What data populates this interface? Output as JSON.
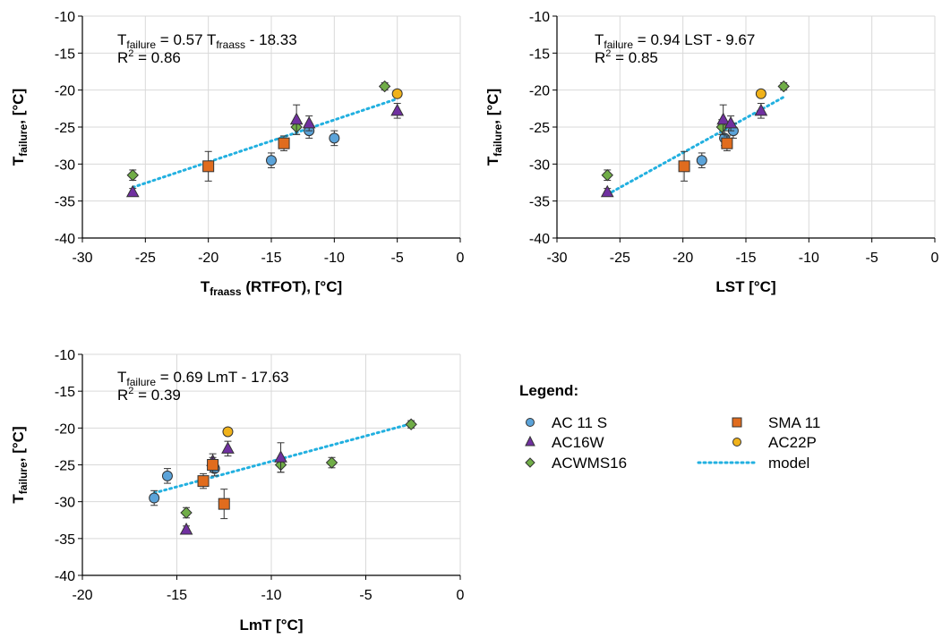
{
  "colors": {
    "AC 11 S": "#5ba3d9",
    "AC16W": "#7030a0",
    "ACWMS16": "#70ad47",
    "SMA 11": "#e06c1e",
    "AC22P": "#f0b21a",
    "model": "#22b0e0",
    "grid": "#d9d9d9"
  },
  "legend": {
    "title": "Legend:",
    "items": [
      {
        "label": "AC 11 S",
        "marker": "circle",
        "series": "AC 11 S"
      },
      {
        "label": "SMA 11",
        "marker": "square",
        "series": "SMA 11"
      },
      {
        "label": "AC16W",
        "marker": "triangle",
        "series": "AC16W"
      },
      {
        "label": "AC22P",
        "marker": "circle",
        "series": "AC22P"
      },
      {
        "label": "ACWMS16",
        "marker": "diamond",
        "series": "ACWMS16"
      },
      {
        "label": "model",
        "marker": "dotted-line",
        "series": "model"
      }
    ]
  },
  "chart_data": [
    {
      "type": "scatter",
      "xlabel_main": "T",
      "xlabel_sub": "fraass",
      "xlabel_rest": " (RTFOT), [°C]",
      "ylabel_main": "T",
      "ylabel_sub": "failure",
      "ylabel_rest": ", [°C]",
      "xlim": [
        -30,
        0
      ],
      "ylim": [
        -40,
        -10
      ],
      "xticks": [
        -30,
        -25,
        -20,
        -15,
        -10,
        -5,
        0
      ],
      "yticks": [
        -10,
        -15,
        -20,
        -25,
        -30,
        -35,
        -40
      ],
      "grid": true,
      "equation": {
        "lhs": "T",
        "lhs_sub": "failure",
        "mid": " = 0.57 T",
        "mid_sub": "fraass",
        "rhs": " - 18.33"
      },
      "r2": {
        "label": "R",
        "sup": "2",
        "value": " = 0.86"
      },
      "model_line": {
        "x": [
          -26,
          -5
        ],
        "y": [
          -33.15,
          -21.18
        ]
      },
      "series": [
        {
          "name": "AC 11 S",
          "marker": "circle",
          "points": [
            {
              "x": -15,
              "y": -29.5,
              "err": 1
            },
            {
              "x": -10,
              "y": -26.5,
              "err": 1
            },
            {
              "x": -12,
              "y": -25.5,
              "err": 1
            }
          ]
        },
        {
          "name": "AC16W",
          "marker": "triangle",
          "points": [
            {
              "x": -26,
              "y": -33.8,
              "err": 0.5
            },
            {
              "x": -13,
              "y": -24,
              "err": 2
            },
            {
              "x": -12,
              "y": -24.5,
              "err": 1
            },
            {
              "x": -5,
              "y": -22.8,
              "err": 1
            }
          ]
        },
        {
          "name": "ACWMS16",
          "marker": "diamond",
          "points": [
            {
              "x": -26,
              "y": -31.5,
              "err": 0.7
            },
            {
              "x": -13,
              "y": -25,
              "err": 1
            },
            {
              "x": -6,
              "y": -19.5,
              "err": 0.5
            }
          ]
        },
        {
          "name": "SMA 11",
          "marker": "square",
          "points": [
            {
              "x": -20,
              "y": -30.3,
              "err": 2
            },
            {
              "x": -14,
              "y": -27.2,
              "err": 1
            }
          ]
        },
        {
          "name": "AC22P",
          "marker": "circle",
          "points": [
            {
              "x": -5,
              "y": -20.5,
              "err": 0
            }
          ]
        }
      ]
    },
    {
      "type": "scatter",
      "xlabel_main": "LST [°C]",
      "xlabel_sub": "",
      "xlabel_rest": "",
      "ylabel_main": "T",
      "ylabel_sub": "failure",
      "ylabel_rest": ", [°C]",
      "xlim": [
        -30,
        0
      ],
      "ylim": [
        -40,
        -10
      ],
      "xticks": [
        -30,
        -25,
        -20,
        -15,
        -10,
        -5,
        0
      ],
      "yticks": [
        -10,
        -15,
        -20,
        -25,
        -30,
        -35,
        -40
      ],
      "grid": true,
      "equation": {
        "lhs": "T",
        "lhs_sub": "failure",
        "mid": " = 0.94 LST - 9.67",
        "mid_sub": "",
        "rhs": ""
      },
      "r2": {
        "label": "R",
        "sup": "2",
        "value": " = 0.85"
      },
      "model_line": {
        "x": [
          -26,
          -12
        ],
        "y": [
          -34.11,
          -20.95
        ]
      },
      "series": [
        {
          "name": "AC 11 S",
          "marker": "circle",
          "points": [
            {
              "x": -18.5,
              "y": -29.5,
              "err": 1
            },
            {
              "x": -16.7,
              "y": -26.5,
              "err": 1
            },
            {
              "x": -16,
              "y": -25.5,
              "err": 1
            }
          ]
        },
        {
          "name": "AC16W",
          "marker": "triangle",
          "points": [
            {
              "x": -26,
              "y": -33.8,
              "err": 0.5
            },
            {
              "x": -16.8,
              "y": -24,
              "err": 2
            },
            {
              "x": -16.2,
              "y": -24.5,
              "err": 1
            },
            {
              "x": -13.8,
              "y": -22.8,
              "err": 1
            }
          ]
        },
        {
          "name": "ACWMS16",
          "marker": "diamond",
          "points": [
            {
              "x": -26,
              "y": -31.5,
              "err": 0.7
            },
            {
              "x": -16.9,
              "y": -25,
              "err": 1
            },
            {
              "x": -12,
              "y": -19.5,
              "err": 0.5
            }
          ]
        },
        {
          "name": "SMA 11",
          "marker": "square",
          "points": [
            {
              "x": -19.9,
              "y": -30.3,
              "err": 2
            },
            {
              "x": -16.5,
              "y": -27.2,
              "err": 1
            }
          ]
        },
        {
          "name": "AC22P",
          "marker": "circle",
          "points": [
            {
              "x": -13.8,
              "y": -20.5,
              "err": 0
            }
          ]
        }
      ]
    },
    {
      "type": "scatter",
      "xlabel_main": "LmT [°C]",
      "xlabel_sub": "",
      "xlabel_rest": "",
      "ylabel_main": "T",
      "ylabel_sub": "failure",
      "ylabel_rest": ", [°C]",
      "xlim": [
        -20,
        0
      ],
      "ylim": [
        -40,
        -10
      ],
      "xticks": [
        -20,
        -15,
        -10,
        -5,
        0
      ],
      "yticks": [
        -10,
        -15,
        -20,
        -25,
        -30,
        -35,
        -40
      ],
      "grid": true,
      "equation": {
        "lhs": "T",
        "lhs_sub": "failure",
        "mid": " = 0.69 LmT - 17.63",
        "mid_sub": "",
        "rhs": ""
      },
      "r2": {
        "label": "R",
        "sup": "2",
        "value": " = 0.39"
      },
      "model_line": {
        "x": [
          -16.2,
          -2.6
        ],
        "y": [
          -28.81,
          -19.42
        ]
      },
      "series": [
        {
          "name": "AC 11 S",
          "marker": "circle",
          "points": [
            {
              "x": -16.2,
              "y": -29.5,
              "err": 1
            },
            {
              "x": -15.5,
              "y": -26.5,
              "err": 1
            },
            {
              "x": -13,
              "y": -25.5,
              "err": 1
            }
          ]
        },
        {
          "name": "AC16W",
          "marker": "triangle",
          "points": [
            {
              "x": -14.5,
              "y": -33.8,
              "err": 0.5
            },
            {
              "x": -9.5,
              "y": -24,
              "err": 2
            },
            {
              "x": -13.1,
              "y": -24.5,
              "err": 1
            },
            {
              "x": -12.3,
              "y": -22.8,
              "err": 1
            }
          ]
        },
        {
          "name": "ACWMS16",
          "marker": "diamond",
          "points": [
            {
              "x": -14.5,
              "y": -31.5,
              "err": 0.7
            },
            {
              "x": -9.5,
              "y": -25,
              "err": 1
            },
            {
              "x": -6.8,
              "y": -24.7,
              "err": 0.7
            },
            {
              "x": -2.6,
              "y": -19.5,
              "err": 0.5
            }
          ]
        },
        {
          "name": "SMA 11",
          "marker": "square",
          "points": [
            {
              "x": -12.5,
              "y": -30.3,
              "err": 2
            },
            {
              "x": -13.6,
              "y": -27.2,
              "err": 1
            },
            {
              "x": -13.1,
              "y": -25,
              "err": 1
            }
          ]
        },
        {
          "name": "AC22P",
          "marker": "circle",
          "points": [
            {
              "x": -12.3,
              "y": -20.5,
              "err": 0
            }
          ]
        }
      ]
    }
  ]
}
